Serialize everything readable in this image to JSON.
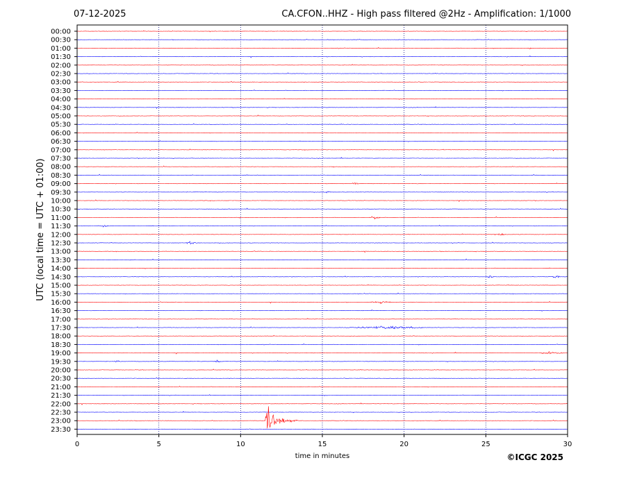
{
  "header": {
    "date": "07-12-2025",
    "title": "CA.CFON..HHZ - High pass filtered @2Hz - Amplification: 1/1000"
  },
  "footer": {
    "copyright": "©ICGC 2025"
  },
  "colors": {
    "red_trace": "#ff0000",
    "blue_trace": "#0000ff",
    "grid": "#000080"
  },
  "chart_data": {
    "type": "line",
    "title": "CA.CFON..HHZ - High pass filtered @2Hz - Amplification: 1/1000",
    "xlabel": "time in minutes",
    "ylabel": "UTC (local time = UTC + 01:00)",
    "xlim": [
      0,
      30
    ],
    "x_ticks": [
      "0",
      "5",
      "10",
      "15",
      "20",
      "25",
      "30"
    ],
    "vertical_grid": [
      5,
      10,
      15,
      20,
      25
    ],
    "row_labels": [
      "00:00",
      "00:30",
      "01:00",
      "01:30",
      "02:00",
      "02:30",
      "03:00",
      "03:30",
      "04:00",
      "04:30",
      "05:00",
      "05:30",
      "06:00",
      "06:30",
      "07:00",
      "07:30",
      "08:00",
      "08:30",
      "09:00",
      "09:30",
      "10:00",
      "10:30",
      "11:00",
      "11:30",
      "12:00",
      "12:30",
      "13:00",
      "13:30",
      "14:00",
      "14:30",
      "15:00",
      "15:30",
      "16:00",
      "16:30",
      "17:00",
      "17:30",
      "18:00",
      "18:30",
      "19:00",
      "19:30",
      "20:00",
      "20:30",
      "21:00",
      "21:30",
      "22:00",
      "22:30",
      "23:00",
      "23:30"
    ],
    "row_colors": "alternating red (even rows) / blue (odd rows)",
    "events": [
      {
        "row": "23:00",
        "start_min": 11.5,
        "peak_min": 11.6,
        "end_min": 13.8,
        "description": "large event"
      },
      {
        "row": "09:30",
        "start_min": 15.0,
        "end_min": 15.6
      },
      {
        "row": "12:30",
        "start_min": 6.5,
        "end_min": 7.4
      },
      {
        "row": "11:30",
        "start_min": 1.4,
        "end_min": 2.0
      },
      {
        "row": "16:00",
        "start_min": 17.8,
        "end_min": 19.4
      },
      {
        "row": "17:30",
        "start_min": 16.0,
        "end_min": 22.0
      },
      {
        "row": "19:00",
        "start_min": 28.0,
        "end_min": 30.0
      },
      {
        "row": "19:30",
        "start_min": 2.2,
        "end_min": 2.7
      },
      {
        "row": "19:30",
        "start_min": 8.3,
        "end_min": 8.9
      },
      {
        "row": "14:30",
        "start_min": 25.0,
        "end_min": 25.6
      },
      {
        "row": "14:30",
        "start_min": 29.0,
        "end_min": 29.6
      },
      {
        "row": "12:00",
        "start_min": 25.2,
        "end_min": 26.4
      },
      {
        "row": "11:00",
        "start_min": 17.8,
        "end_min": 18.6
      },
      {
        "row": "09:00",
        "start_min": 16.6,
        "end_min": 17.3
      },
      {
        "row": "01:00",
        "start_min": 27.6,
        "end_min": 27.9
      }
    ]
  }
}
